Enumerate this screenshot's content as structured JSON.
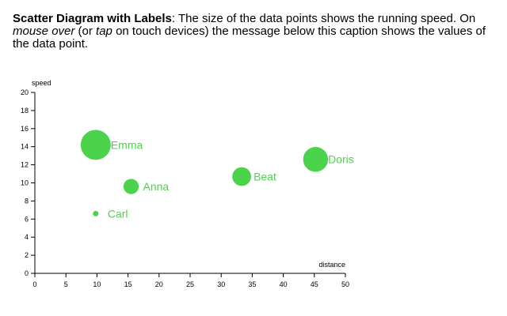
{
  "caption": {
    "title": "Scatter Diagram with Labels",
    "colon": ":",
    "text_1": " The size of the data points shows the running speed. On ",
    "em_1": "mouse over",
    "text_2": " (or ",
    "em_2": "tap",
    "text_3": " on touch devices) the message below this caption shows the values of the data point."
  },
  "colors": {
    "point": "#4cd34c",
    "axis": "#000000"
  },
  "chart_data": {
    "type": "scatter",
    "title": "",
    "xlabel": "distance",
    "ylabel": "speed",
    "xlim": [
      0,
      50
    ],
    "ylim": [
      0,
      20
    ],
    "xticks": [
      0,
      5,
      10,
      15,
      20,
      25,
      30,
      35,
      40,
      45,
      50
    ],
    "yticks": [
      0,
      2,
      4,
      6,
      8,
      10,
      12,
      14,
      16,
      18,
      20
    ],
    "grid": false,
    "legend": "none",
    "points": [
      {
        "label": "Emma",
        "x": 9.8,
        "y": 14.2
      },
      {
        "label": "Carl",
        "x": 9.8,
        "y": 6.6
      },
      {
        "label": "Anna",
        "x": 15.5,
        "y": 9.6
      },
      {
        "label": "Beat",
        "x": 33.3,
        "y": 10.7
      },
      {
        "label": "Doris",
        "x": 45.2,
        "y": 12.6
      }
    ]
  }
}
